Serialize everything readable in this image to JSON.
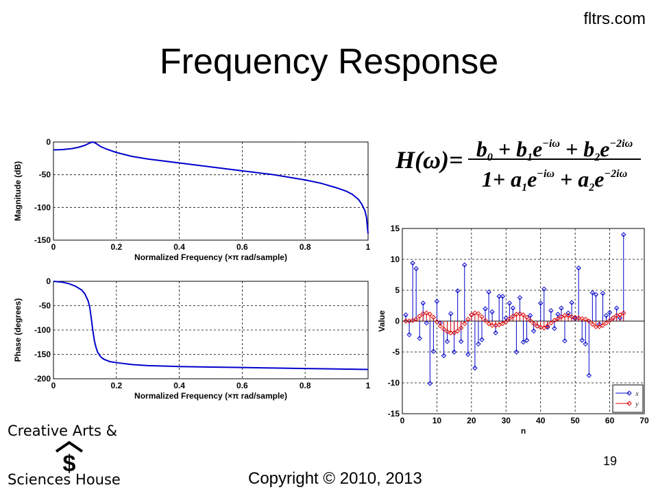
{
  "header": {
    "site": "fltrs.com",
    "title": "Frequency Response"
  },
  "equation": {
    "lhs": "H(ω)=",
    "numerator": [
      {
        "t": "b"
      },
      {
        "sub": "0"
      },
      {
        "t": " + b"
      },
      {
        "sub": "1"
      },
      {
        "t": "e"
      },
      {
        "sup": "−iω"
      },
      {
        "t": " + b"
      },
      {
        "sub": "2"
      },
      {
        "t": "e"
      },
      {
        "sup": "−2iω"
      }
    ],
    "denominator": [
      {
        "t": "1+ a"
      },
      {
        "sub": "1"
      },
      {
        "t": "e"
      },
      {
        "sup": "−iω"
      },
      {
        "t": " + a"
      },
      {
        "sub": "2"
      },
      {
        "t": "e"
      },
      {
        "sup": "−2iω"
      }
    ]
  },
  "footer": {
    "logo_line1": "Creative Arts &",
    "logo_line2": "Sciences House",
    "logo_symbol": "$",
    "page_number": "19",
    "copyright": "Copyright © 2010, 2013"
  },
  "colors": {
    "x_series": "#0000cc",
    "y_series": "#dd0000",
    "curve": "#0000cc"
  },
  "chart_data": [
    {
      "id": "magnitude",
      "type": "line",
      "xlabel": "Normalized Frequency  (×π rad/sample)",
      "ylabel": "Magnitude (dB)",
      "xlim": [
        0,
        1
      ],
      "ylim": [
        -150,
        0
      ],
      "xticks": [
        "0",
        "0.2",
        "0.4",
        "0.6",
        "0.8",
        "1"
      ],
      "xtick_values": [
        0,
        0.2,
        0.4,
        0.6,
        0.8,
        1
      ],
      "yticks": [
        "0",
        "-50",
        "-100",
        "-150"
      ],
      "ytick_values": [
        0,
        -50,
        -100,
        -150
      ],
      "grid": true,
      "x": [
        0,
        0.03,
        0.06,
        0.08,
        0.1,
        0.115,
        0.125,
        0.135,
        0.15,
        0.17,
        0.2,
        0.25,
        0.3,
        0.4,
        0.5,
        0.6,
        0.7,
        0.8,
        0.85,
        0.9,
        0.93,
        0.95,
        0.97,
        0.98,
        0.99,
        0.995,
        1.0
      ],
      "y": [
        -12,
        -11.5,
        -10,
        -8,
        -5,
        -1.5,
        0,
        -2,
        -7,
        -11,
        -16,
        -22,
        -26,
        -32,
        -38,
        -44,
        -50,
        -58,
        -63,
        -70,
        -75,
        -80,
        -88,
        -95,
        -105,
        -115,
        -140
      ]
    },
    {
      "id": "phase",
      "type": "line",
      "xlabel": "Normalized Frequency  (×π rad/sample)",
      "ylabel": "Phase (degrees)",
      "xlim": [
        0,
        1
      ],
      "ylim": [
        -200,
        0
      ],
      "xticks": [
        "0",
        "0.2",
        "0.4",
        "0.6",
        "0.8",
        "1"
      ],
      "xtick_values": [
        0,
        0.2,
        0.4,
        0.6,
        0.8,
        1
      ],
      "yticks": [
        "0",
        "-50",
        "-100",
        "-150",
        "-200"
      ],
      "ytick_values": [
        0,
        -50,
        -100,
        -150,
        -200
      ],
      "grid": true,
      "x": [
        0,
        0.03,
        0.05,
        0.07,
        0.09,
        0.1,
        0.11,
        0.115,
        0.12,
        0.125,
        0.13,
        0.135,
        0.14,
        0.15,
        0.16,
        0.18,
        0.2,
        0.25,
        0.3,
        0.4,
        0.5,
        0.6,
        0.7,
        0.8,
        0.9,
        1.0
      ],
      "y": [
        0,
        -2,
        -5,
        -10,
        -18,
        -26,
        -40,
        -52,
        -75,
        -100,
        -122,
        -135,
        -145,
        -155,
        -160,
        -165,
        -167,
        -171,
        -173,
        -175,
        -176,
        -177,
        -178,
        -179,
        -180,
        -181
      ]
    },
    {
      "id": "stem",
      "type": "scatter",
      "xlabel": "n",
      "ylabel": "Value",
      "xlim": [
        0,
        70
      ],
      "ylim": [
        -15,
        15
      ],
      "xticks": [
        "0",
        "10",
        "20",
        "30",
        "40",
        "50",
        "60",
        "70"
      ],
      "xtick_values": [
        0,
        10,
        20,
        30,
        40,
        50,
        60,
        70
      ],
      "yticks": [
        "15",
        "10",
        "5",
        "0",
        "-5",
        "-10",
        "-15"
      ],
      "ytick_values": [
        15,
        10,
        5,
        0,
        -5,
        -10,
        -15
      ],
      "grid": true,
      "legend": {
        "position": "bottom-right",
        "entries": [
          "x",
          "y"
        ]
      },
      "n": [
        1,
        2,
        3,
        4,
        5,
        6,
        7,
        8,
        9,
        10,
        11,
        12,
        13,
        14,
        15,
        16,
        17,
        18,
        19,
        20,
        21,
        22,
        23,
        24,
        25,
        26,
        27,
        28,
        29,
        30,
        31,
        32,
        33,
        34,
        35,
        36,
        37,
        38,
        39,
        40,
        41,
        42,
        43,
        44,
        45,
        46,
        47,
        48,
        49,
        50,
        51,
        52,
        53,
        54,
        55,
        56,
        57,
        58,
        59,
        60,
        61,
        62,
        63,
        64
      ],
      "series": [
        {
          "name": "x",
          "values": [
            1.0,
            -2.2,
            9.4,
            8.5,
            -2.8,
            2.9,
            -0.3,
            -10.1,
            -4.9,
            3.2,
            -0.3,
            -5.6,
            -3.3,
            1.2,
            -5.0,
            4.9,
            -3.3,
            9.1,
            -5.4,
            1.0,
            -7.6,
            -3.7,
            -3.0,
            2.0,
            4.7,
            1.5,
            -1.9,
            4.0,
            4.0,
            0.5,
            2.9,
            2.1,
            -5.0,
            3.8,
            -3.4,
            -3.1,
            0.9,
            -1.6,
            -0.8,
            2.9,
            5.2,
            -1.0,
            1.7,
            -1.2,
            1.1,
            2.1,
            -3.2,
            1.3,
            3.0,
            0.4,
            8.6,
            -3.1,
            -3.7,
            -8.8,
            4.6,
            4.3,
            -0.5,
            4.5,
            0.9,
            1.4,
            0.5,
            2.1,
            0.5,
            14.0
          ]
        },
        {
          "name": "y",
          "values": [
            0,
            0,
            0.1,
            0.3,
            0.8,
            1.2,
            1.3,
            1.1,
            0.6,
            -0.1,
            -0.8,
            -1.3,
            -1.7,
            -1.9,
            -1.9,
            -1.6,
            -1.1,
            -0.4,
            0.3,
            1.0,
            1.3,
            1.2,
            0.7,
            0.1,
            -0.4,
            -0.7,
            -0.7,
            -0.6,
            -0.4,
            -0.1,
            0.4,
            0.8,
            1.1,
            1.2,
            1.0,
            0.6,
            0.1,
            -0.4,
            -0.8,
            -1.0,
            -1.1,
            -0.8,
            -0.3,
            0.1,
            0.4,
            0.7,
            0.9,
            0.9,
            0.7,
            0.6,
            0.5,
            0.4,
            0.3,
            0.0,
            -0.5,
            -0.9,
            -0.9,
            -0.7,
            -0.3,
            0.1,
            0.5,
            0.9,
            1.0,
            1.3
          ]
        }
      ]
    }
  ]
}
